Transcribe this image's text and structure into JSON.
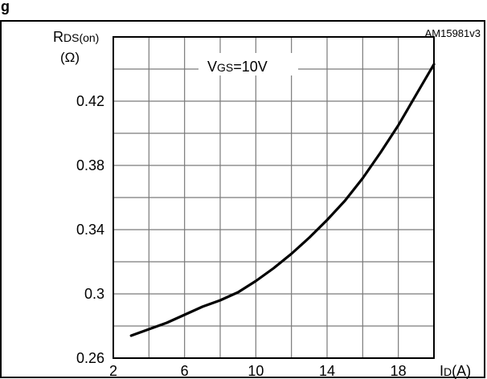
{
  "header": {
    "title_fragment": "g",
    "reference_code": "AM15981v3"
  },
  "chart_data": {
    "type": "line",
    "ylabel_main": "R",
    "ylabel_sub": "DS(on)",
    "ylabel_unit": "(Ω)",
    "xlabel_main": "I",
    "xlabel_sub": "D",
    "xlabel_unit": "(A)",
    "condition_main": "V",
    "condition_sub": "GS",
    "condition_value": "=10V",
    "xlim": [
      2,
      20
    ],
    "ylim": [
      0.26,
      0.46
    ],
    "x_ticks": [
      2,
      6,
      10,
      14,
      18
    ],
    "y_ticks": [
      0.26,
      0.3,
      0.34,
      0.38,
      0.42
    ],
    "x_tick_labels": [
      "2",
      "6",
      "10",
      "14",
      "18"
    ],
    "y_tick_labels": [
      "0.26",
      "0.3",
      "0.34",
      "0.38",
      "0.42"
    ],
    "grid": true,
    "series": [
      {
        "color": "#000000",
        "x": [
          3,
          4,
          5,
          6,
          7,
          8,
          9,
          10,
          11,
          12,
          13,
          14,
          15,
          16,
          17,
          18,
          19,
          20
        ],
        "y": [
          0.274,
          0.278,
          0.282,
          0.287,
          0.292,
          0.296,
          0.301,
          0.308,
          0.316,
          0.325,
          0.335,
          0.346,
          0.358,
          0.372,
          0.388,
          0.405,
          0.424,
          0.443
        ]
      }
    ]
  }
}
